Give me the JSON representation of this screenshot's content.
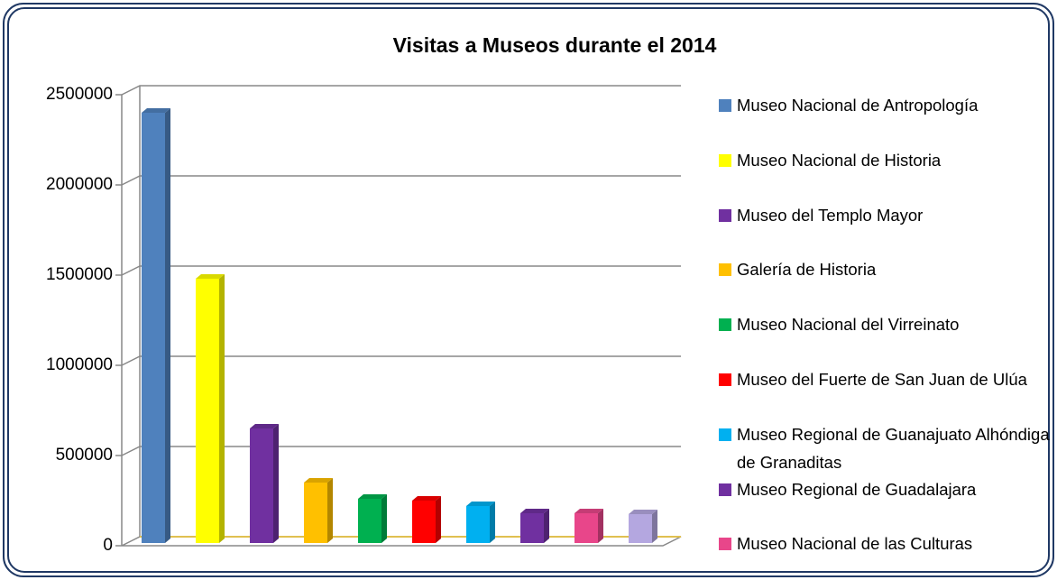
{
  "chart_data": {
    "type": "bar3d",
    "title": "Visitas a Museos durante el 2014",
    "categories": [
      "Museo Nacional de Antropología",
      "Museo Nacional de Historia",
      "Museo del Templo Mayor",
      "Galería de Historia",
      "Museo Nacional del Virreinato",
      "Museo del Fuerte de San Juan de Ulúa",
      "Museo Regional de Guanajuato Alhóndiga de Granaditas",
      "Museo Regional de Guadalajara",
      "Museo Nacional de las Culturas",
      null
    ],
    "values": [
      2400000,
      1480000,
      650000,
      350000,
      260000,
      250000,
      220000,
      180000,
      180000,
      175000
    ],
    "colors": [
      "#4f81bd",
      "#ffff00",
      "#7030a0",
      "#ffc000",
      "#00b050",
      "#ff0000",
      "#00b0f0",
      "#7030a0",
      "#e8468a",
      "#b4a7e0"
    ],
    "ylim": [
      0,
      2500000
    ],
    "yticks": [
      0,
      500000,
      1000000,
      1500000,
      2000000,
      2500000
    ],
    "grid": true,
    "legend": "right"
  }
}
